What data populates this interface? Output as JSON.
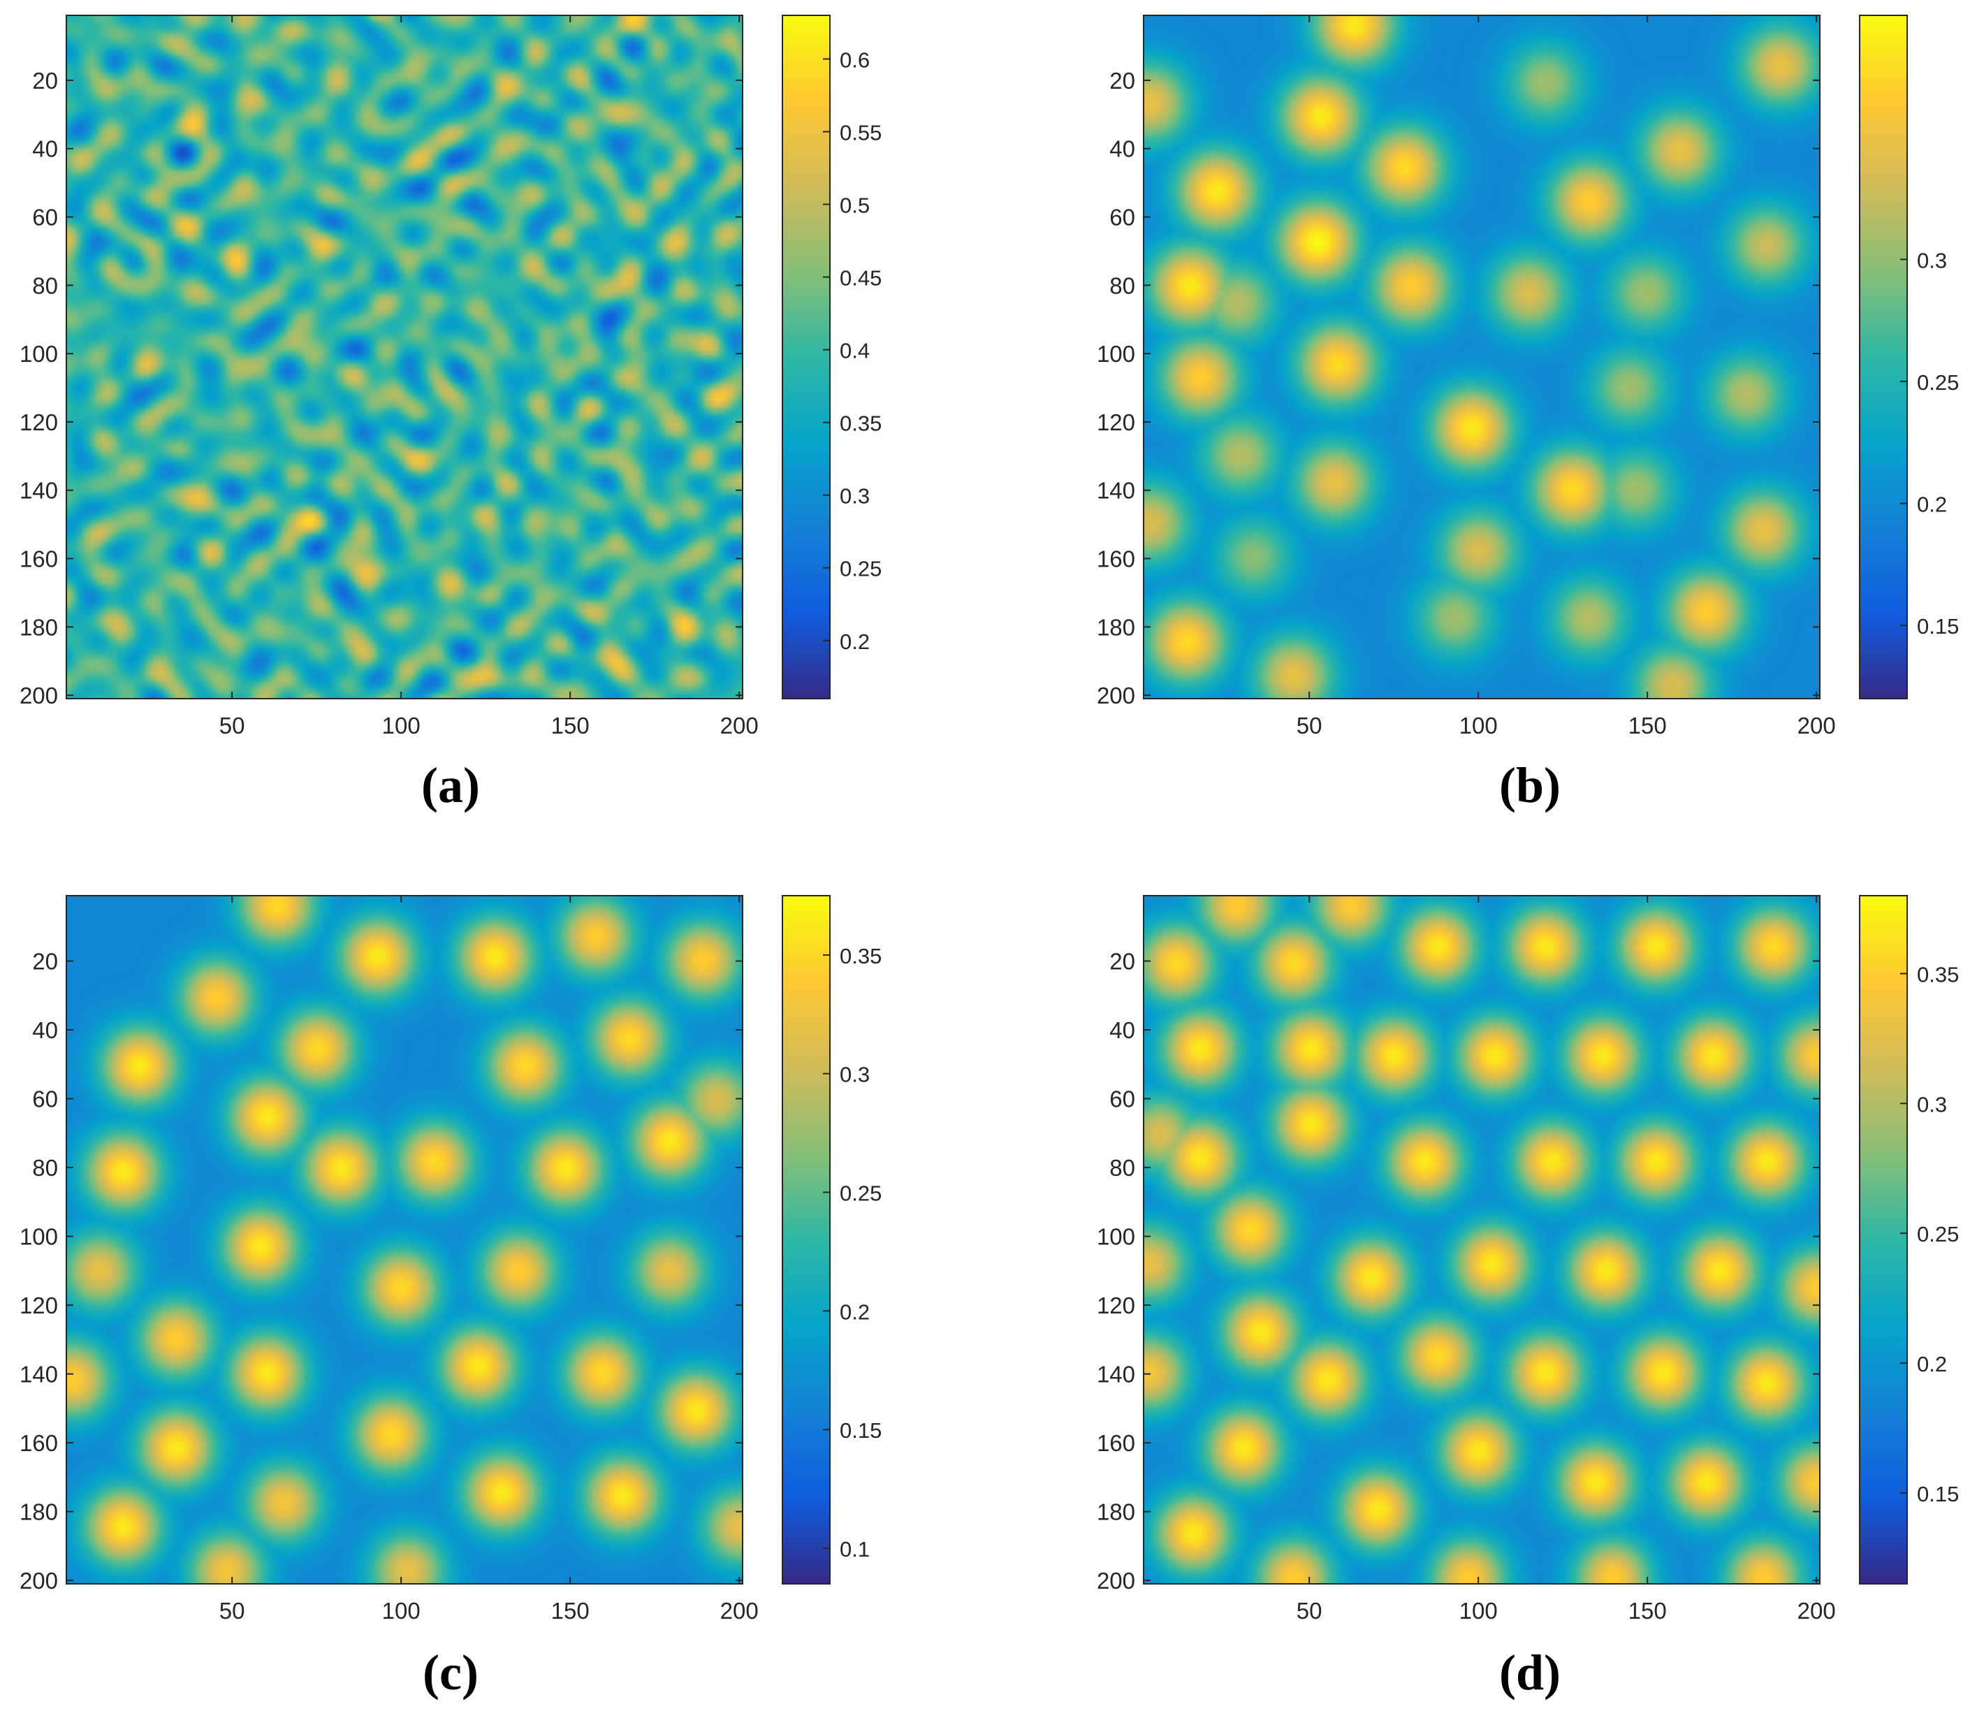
{
  "chart_data": [
    {
      "type": "heatmap",
      "panel_label": "(a)",
      "x_ticks": [
        50,
        100,
        150,
        200
      ],
      "y_ticks": [
        20,
        40,
        60,
        80,
        100,
        120,
        140,
        160,
        180,
        200
      ],
      "xlim": [
        1,
        201
      ],
      "ylim": [
        1,
        201
      ],
      "y_reversed": true,
      "pattern": "noise",
      "spots": [],
      "colorbar": {
        "clim": [
          0.16,
          0.63
        ],
        "ticks": [
          0.2,
          0.25,
          0.3,
          0.35,
          0.4,
          0.45,
          0.5,
          0.55,
          0.6
        ]
      }
    },
    {
      "type": "heatmap",
      "panel_label": "(b)",
      "x_ticks": [
        50,
        100,
        150,
        200
      ],
      "y_ticks": [
        20,
        40,
        60,
        80,
        100,
        120,
        140,
        160,
        180,
        200
      ],
      "xlim": [
        1,
        201
      ],
      "ylim": [
        1,
        201
      ],
      "y_reversed": true,
      "pattern": "spots",
      "spots": [
        [
          63,
          3,
          0.95
        ],
        [
          53,
          30,
          0.95
        ],
        [
          78,
          45,
          0.9
        ],
        [
          22,
          52,
          0.95
        ],
        [
          52,
          67,
          1.0
        ],
        [
          14,
          80,
          0.95
        ],
        [
          80,
          80,
          0.85
        ],
        [
          58,
          103,
          0.9
        ],
        [
          17,
          107,
          0.85
        ],
        [
          98,
          122,
          0.95
        ],
        [
          128,
          140,
          0.9
        ],
        [
          57,
          138,
          0.75
        ],
        [
          100,
          158,
          0.7
        ],
        [
          133,
          55,
          0.85
        ],
        [
          160,
          40,
          0.75
        ],
        [
          190,
          15,
          0.75
        ],
        [
          2,
          26,
          0.75
        ],
        [
          115,
          82,
          0.7
        ],
        [
          186,
          68,
          0.65
        ],
        [
          180,
          112,
          0.6
        ],
        [
          145,
          110,
          0.55
        ],
        [
          185,
          152,
          0.75
        ],
        [
          168,
          176,
          0.85
        ],
        [
          150,
          82,
          0.55
        ],
        [
          13,
          185,
          0.9
        ],
        [
          45,
          195,
          0.75
        ],
        [
          93,
          178,
          0.55
        ],
        [
          133,
          178,
          0.6
        ],
        [
          158,
          198,
          0.7
        ],
        [
          2,
          150,
          0.7
        ],
        [
          29,
          130,
          0.6
        ],
        [
          33,
          160,
          0.5
        ],
        [
          147,
          140,
          0.55
        ],
        [
          120,
          20,
          0.55
        ],
        [
          28,
          85,
          0.6
        ]
      ],
      "colorbar": {
        "clim": [
          0.12,
          0.4
        ],
        "ticks": [
          0.15,
          0.2,
          0.25,
          0.3
        ]
      }
    },
    {
      "type": "heatmap",
      "panel_label": "(c)",
      "x_ticks": [
        50,
        100,
        150,
        200
      ],
      "y_ticks": [
        20,
        40,
        60,
        80,
        100,
        120,
        140,
        160,
        180,
        200
      ],
      "xlim": [
        1,
        201
      ],
      "ylim": [
        1,
        201
      ],
      "y_reversed": true,
      "pattern": "spots",
      "spots": [
        [
          63,
          3,
          0.9
        ],
        [
          45,
          30,
          0.85
        ],
        [
          22,
          50,
          0.95
        ],
        [
          60,
          65,
          0.95
        ],
        [
          17,
          81,
          0.95
        ],
        [
          93,
          18,
          0.95
        ],
        [
          128,
          18,
          0.95
        ],
        [
          158,
          12,
          0.85
        ],
        [
          190,
          19,
          0.85
        ],
        [
          75,
          45,
          0.9
        ],
        [
          137,
          50,
          0.9
        ],
        [
          168,
          42,
          0.9
        ],
        [
          194,
          60,
          0.7
        ],
        [
          110,
          78,
          0.9
        ],
        [
          82,
          80,
          0.95
        ],
        [
          149,
          80,
          0.95
        ],
        [
          180,
          72,
          0.95
        ],
        [
          58,
          103,
          0.95
        ],
        [
          100,
          115,
          0.9
        ],
        [
          135,
          110,
          0.85
        ],
        [
          180,
          110,
          0.75
        ],
        [
          10,
          110,
          0.75
        ],
        [
          33,
          130,
          0.85
        ],
        [
          60,
          140,
          0.95
        ],
        [
          123,
          138,
          0.95
        ],
        [
          160,
          140,
          0.9
        ],
        [
          188,
          151,
          0.95
        ],
        [
          33,
          162,
          0.95
        ],
        [
          2,
          142,
          0.85
        ],
        [
          97,
          158,
          0.9
        ],
        [
          130,
          175,
          0.95
        ],
        [
          166,
          176,
          0.95
        ],
        [
          17,
          185,
          0.95
        ],
        [
          65,
          178,
          0.8
        ],
        [
          102,
          198,
          0.75
        ],
        [
          48,
          198,
          0.8
        ],
        [
          201,
          185,
          0.75
        ]
      ],
      "colorbar": {
        "clim": [
          0.085,
          0.375
        ],
        "ticks": [
          0.1,
          0.15,
          0.2,
          0.25,
          0.3,
          0.35
        ]
      }
    },
    {
      "type": "heatmap",
      "panel_label": "(d)",
      "x_ticks": [
        50,
        100,
        150,
        200
      ],
      "y_ticks": [
        20,
        40,
        60,
        80,
        100,
        120,
        140,
        160,
        180,
        200
      ],
      "xlim": [
        1,
        201
      ],
      "ylim": [
        1,
        201
      ],
      "y_reversed": true,
      "pattern": "spots",
      "spots": [
        [
          28,
          3,
          0.85
        ],
        [
          62,
          3,
          0.85
        ],
        [
          10,
          20,
          0.9
        ],
        [
          45,
          20,
          0.9
        ],
        [
          88,
          15,
          0.95
        ],
        [
          120,
          15,
          0.95
        ],
        [
          153,
          15,
          0.95
        ],
        [
          188,
          15,
          0.9
        ],
        [
          17,
          45,
          0.95
        ],
        [
          50,
          45,
          0.95
        ],
        [
          75,
          47,
          0.95
        ],
        [
          105,
          47,
          0.95
        ],
        [
          137,
          47,
          0.95
        ],
        [
          170,
          47,
          0.95
        ],
        [
          201,
          47,
          0.85
        ],
        [
          5,
          70,
          0.7
        ],
        [
          50,
          67,
          0.95
        ],
        [
          17,
          77,
          0.95
        ],
        [
          84,
          78,
          0.95
        ],
        [
          122,
          78,
          0.95
        ],
        [
          153,
          78,
          0.95
        ],
        [
          186,
          78,
          0.95
        ],
        [
          32,
          98,
          0.9
        ],
        [
          68,
          112,
          0.95
        ],
        [
          104,
          108,
          0.95
        ],
        [
          138,
          110,
          0.95
        ],
        [
          172,
          110,
          0.95
        ],
        [
          201,
          115,
          0.85
        ],
        [
          2,
          108,
          0.75
        ],
        [
          35,
          128,
          0.95
        ],
        [
          88,
          135,
          0.9
        ],
        [
          55,
          142,
          0.95
        ],
        [
          120,
          140,
          0.95
        ],
        [
          155,
          140,
          0.95
        ],
        [
          186,
          143,
          0.95
        ],
        [
          2,
          140,
          0.8
        ],
        [
          30,
          162,
          0.95
        ],
        [
          100,
          163,
          0.95
        ],
        [
          135,
          172,
          0.95
        ],
        [
          168,
          172,
          0.95
        ],
        [
          201,
          172,
          0.85
        ],
        [
          70,
          180,
          0.95
        ],
        [
          15,
          187,
          0.95
        ],
        [
          45,
          200,
          0.85
        ],
        [
          97,
          200,
          0.85
        ],
        [
          140,
          200,
          0.85
        ],
        [
          185,
          200,
          0.85
        ]
      ],
      "colorbar": {
        "clim": [
          0.115,
          0.38
        ],
        "ticks": [
          0.15,
          0.2,
          0.25,
          0.3,
          0.35
        ]
      }
    }
  ]
}
